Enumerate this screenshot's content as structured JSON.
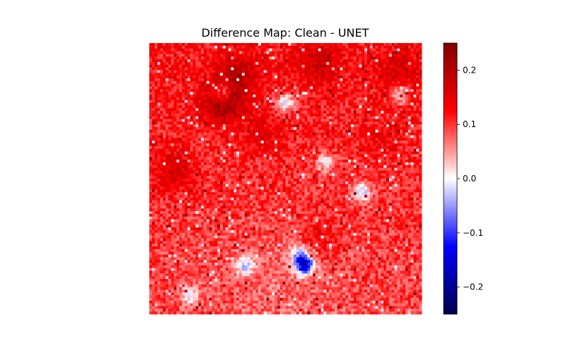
{
  "chart_data": {
    "type": "heatmap",
    "title": "Difference Map: Clean - UNET",
    "xlabel": "",
    "ylabel": "",
    "colormap": "seismic",
    "colorbar": {
      "vmin": -0.25,
      "vmax": 0.25,
      "ticks": [
        0.2,
        0.1,
        0.0,
        -0.1,
        -0.2
      ],
      "tick_labels": [
        "0.2",
        "0.1",
        "0.0",
        "−0.1",
        "−0.2"
      ]
    },
    "grid": false,
    "axes_visible": false,
    "grid_size": [
      100,
      100
    ],
    "value_summary": {
      "background_mean": 0.09,
      "min": -0.15,
      "max": 0.22
    },
    "hotspots": [
      {
        "x": 0.27,
        "y": 0.22,
        "value": 0.19
      },
      {
        "x": 0.33,
        "y": 0.12,
        "value": 0.16
      },
      {
        "x": 0.09,
        "y": 0.47,
        "value": 0.15
      },
      {
        "x": 0.62,
        "y": 0.07,
        "value": 0.15
      },
      {
        "x": 0.42,
        "y": 0.34,
        "value": 0.13
      },
      {
        "x": 0.62,
        "y": 0.72,
        "value": 0.13
      },
      {
        "x": 0.92,
        "y": 0.11,
        "value": 0.14
      },
      {
        "x": 0.85,
        "y": 0.36,
        "value": 0.12
      }
    ],
    "coldspots": [
      {
        "x": 0.27,
        "y": 0.18,
        "value": -0.02
      },
      {
        "x": 0.65,
        "y": 0.44,
        "value": -0.01
      },
      {
        "x": 0.78,
        "y": 0.55,
        "value": -0.04
      },
      {
        "x": 0.55,
        "y": 0.78,
        "value": -0.02
      },
      {
        "x": 0.5,
        "y": 0.22,
        "value": -0.03
      },
      {
        "x": 0.92,
        "y": 0.19,
        "value": -0.01
      },
      {
        "x": 0.15,
        "y": 0.93,
        "value": 0.0
      },
      {
        "x": 0.35,
        "y": 0.82,
        "value": -0.03
      },
      {
        "x": 0.57,
        "y": 0.82,
        "value": -0.15
      }
    ]
  }
}
